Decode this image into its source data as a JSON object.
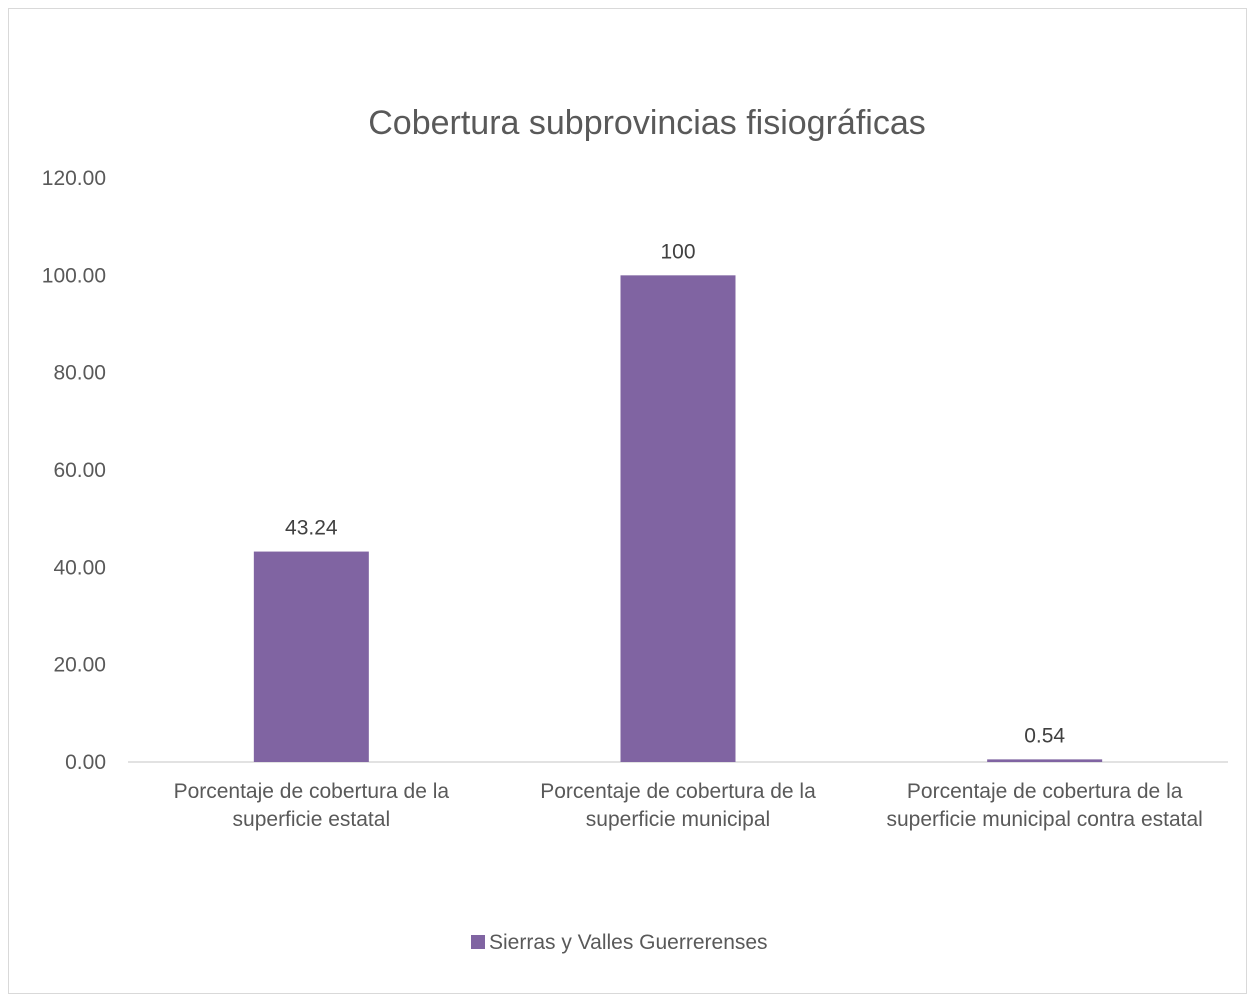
{
  "chart_data": {
    "type": "bar",
    "title": "Cobertura subprovincias fisiográficas",
    "categories": [
      [
        "Porcentaje de cobertura de la",
        "superficie estatal"
      ],
      [
        "Porcentaje de cobertura de la",
        "superficie municipal"
      ],
      [
        "Porcentaje de cobertura de la",
        "superficie municipal contra estatal"
      ]
    ],
    "series": [
      {
        "name": "Sierras y Valles Guerrerenses",
        "color": "#8064a2",
        "values": [
          43.24,
          100,
          0.54
        ],
        "labels": [
          "43.24",
          "100",
          "0.54"
        ]
      }
    ],
    "ylim": [
      0,
      120
    ],
    "yticks": [
      "0.00",
      "20.00",
      "40.00",
      "60.00",
      "80.00",
      "100.00",
      "120.00"
    ],
    "ytick_values": [
      0,
      20,
      40,
      60,
      80,
      100,
      120
    ],
    "grid": false,
    "legend_position": "bottom"
  }
}
